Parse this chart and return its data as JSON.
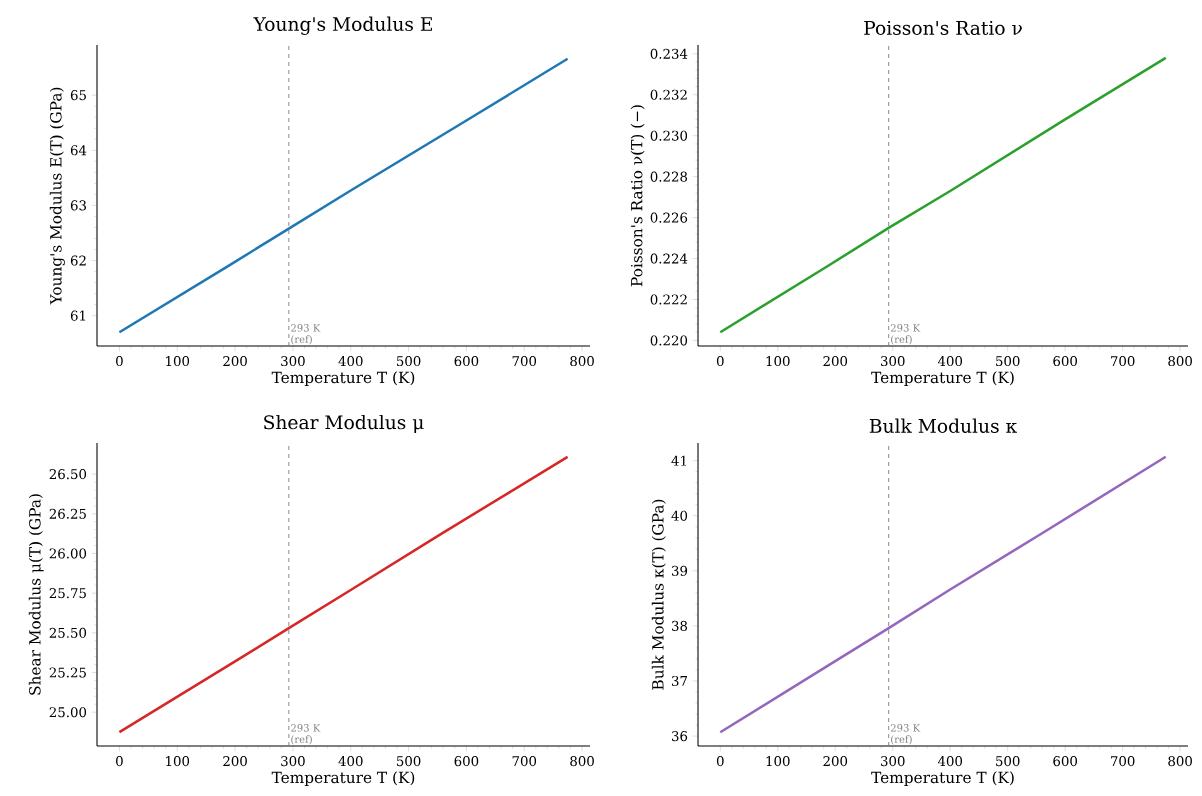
{
  "chart_data": [
    {
      "type": "line",
      "title": "Young's Modulus  E",
      "xlabel": "Temperature  T  (K)",
      "ylabel": "Young's Modulus  E(T)  (GPa)",
      "x": [
        0,
        185,
        293,
        400,
        600,
        775
      ],
      "series": [
        {
          "color": "#1f77b4",
          "values": [
            60.7,
            61.88,
            62.58,
            63.27,
            64.54,
            65.66
          ]
        }
      ],
      "xlim": [
        -38.75,
        813.75
      ],
      "ylim": [
        60.45,
        65.91
      ],
      "xticks": [
        0,
        100,
        200,
        300,
        400,
        500,
        600,
        700,
        800
      ],
      "yticks": [
        61,
        62,
        63,
        64,
        65
      ],
      "ref_lines": [
        {
          "axis": "x",
          "value": 293,
          "label": "293 K (ref)",
          "color": "#808080",
          "line_style": "dashed"
        }
      ]
    },
    {
      "type": "line",
      "title": "Poisson's Ratio  ν",
      "xlabel": "Temperature  T  (K)",
      "ylabel": "Poisson's Ratio  ν(T)  (−)",
      "x": [
        0,
        185,
        293,
        400,
        600,
        775
      ],
      "series": [
        {
          "color": "#2ca02c",
          "values": [
            0.2204,
            0.2236,
            0.2255,
            0.2273,
            0.2308,
            0.2338
          ]
        }
      ],
      "xlim": [
        -38.75,
        813.75
      ],
      "ylim": [
        0.21973,
        0.23443
      ],
      "xticks": [
        0,
        100,
        200,
        300,
        400,
        500,
        600,
        700,
        800
      ],
      "yticks": [
        {
          "value": 0.22,
          "label": "0.220"
        },
        {
          "value": 0.222,
          "label": "0.222"
        },
        {
          "value": 0.224,
          "label": "0.224"
        },
        {
          "value": 0.226,
          "label": "0.226"
        },
        {
          "value": 0.228,
          "label": "0.228"
        },
        {
          "value": 0.23,
          "label": "0.230"
        },
        {
          "value": 0.232,
          "label": "0.232"
        },
        {
          "value": 0.234,
          "label": "0.234"
        }
      ],
      "ref_lines": [
        {
          "axis": "x",
          "value": 293,
          "label": "293 K (ref)",
          "color": "#808080",
          "line_style": "dashed"
        }
      ]
    },
    {
      "type": "line",
      "title": "Shear Modulus  μ",
      "xlabel": "Temperature  T  (K)",
      "ylabel": "Shear Modulus  μ(T)  (GPa)",
      "x": [
        0,
        200,
        293,
        400,
        555,
        775
      ],
      "series": [
        {
          "color": "#d62728",
          "values": [
            24.874,
            25.32,
            25.53,
            25.77,
            26.12,
            26.609
          ]
        }
      ],
      "xlim": [
        -38.75,
        813.75
      ],
      "ylim": [
        24.787,
        26.696
      ],
      "xticks": [
        0,
        100,
        200,
        300,
        400,
        500,
        600,
        700,
        800
      ],
      "yticks": [
        {
          "value": 25.0,
          "label": "25.00"
        },
        {
          "value": 25.25,
          "label": "25.25"
        },
        {
          "value": 25.5,
          "label": "25.50"
        },
        {
          "value": 25.75,
          "label": "25.75"
        },
        {
          "value": 26.0,
          "label": "26.00"
        },
        {
          "value": 26.25,
          "label": "26.25"
        },
        {
          "value": 26.5,
          "label": "26.50"
        }
      ],
      "ref_lines": [
        {
          "axis": "x",
          "value": 293,
          "label": "293 K (ref)",
          "color": "#808080",
          "line_style": "dashed"
        }
      ]
    },
    {
      "type": "line",
      "title": "Bulk Modulus  κ",
      "xlabel": "Temperature  T  (K)",
      "ylabel": "Bulk Modulus  κ(T)  (GPa)",
      "x": [
        0,
        200,
        293,
        400,
        555,
        775
      ],
      "series": [
        {
          "color": "#9467bd",
          "values": [
            36.07,
            37.36,
            37.96,
            38.66,
            39.65,
            41.07
          ]
        }
      ],
      "xlim": [
        -38.75,
        813.75
      ],
      "ylim": [
        35.82,
        41.32
      ],
      "xticks": [
        0,
        100,
        200,
        300,
        400,
        500,
        600,
        700,
        800
      ],
      "yticks": [
        36,
        37,
        38,
        39,
        40,
        41
      ],
      "ref_lines": [
        {
          "axis": "x",
          "value": 293,
          "label": "293 K (ref)",
          "color": "#808080",
          "line_style": "dashed"
        }
      ]
    }
  ]
}
